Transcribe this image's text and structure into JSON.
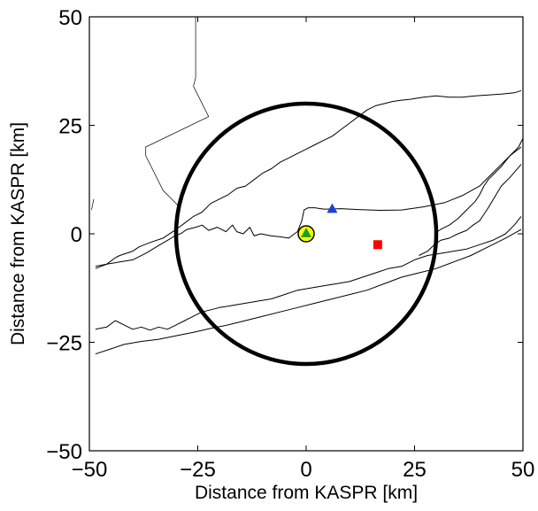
{
  "chart_data": {
    "type": "scatter",
    "title": "",
    "xlabel": "Distance from KASPR [km]",
    "ylabel": "Distance from KASPR [km]",
    "xlim": [
      -50,
      50
    ],
    "ylim": [
      -50,
      50
    ],
    "xticks": [
      {
        "value": -50,
        "label": "−50"
      },
      {
        "value": -25,
        "label": "−25"
      },
      {
        "value": 0,
        "label": "0"
      },
      {
        "value": 25,
        "label": "25"
      },
      {
        "value": 50,
        "label": "50"
      }
    ],
    "yticks": [
      {
        "value": -50,
        "label": "−50"
      },
      {
        "value": -25,
        "label": "−25"
      },
      {
        "value": 0,
        "label": "0"
      },
      {
        "value": 25,
        "label": "25"
      },
      {
        "value": 50,
        "label": "50"
      }
    ],
    "grid": false,
    "range_ring": {
      "center": [
        0,
        0
      ],
      "radius_km": 30,
      "color": "#000000"
    },
    "markers": [
      {
        "shape": "circle",
        "x": 0,
        "y": 0,
        "fill": "#ffff00",
        "edge": "#000000"
      },
      {
        "shape": "triangle",
        "x": 0,
        "y": 0.2,
        "fill": "#1aa01a"
      },
      {
        "shape": "triangle",
        "x": 6,
        "y": 5.8,
        "fill": "#1f3fd6"
      },
      {
        "shape": "square",
        "x": 16.5,
        "y": -2.5,
        "fill": "#ff0000"
      }
    ],
    "coastlines": [
      [
        [
          -48.6,
          -7.5
        ],
        [
          -46,
          -7
        ],
        [
          -43,
          -6.5
        ],
        [
          -40,
          -6
        ],
        [
          -37,
          -4.5
        ],
        [
          -34.5,
          -3
        ],
        [
          -32,
          -1.5
        ],
        [
          -30,
          -0.3
        ],
        [
          -29,
          0
        ],
        [
          -27.5,
          1
        ],
        [
          -25.5,
          1.5
        ],
        [
          -24,
          2
        ],
        [
          -22.5,
          0.8
        ],
        [
          -20.5,
          1.5
        ],
        [
          -18.5,
          0.5
        ],
        [
          -17,
          2
        ],
        [
          -16,
          0.5
        ],
        [
          -14.5,
          0
        ],
        [
          -13,
          1.5
        ],
        [
          -12,
          -0.5
        ],
        [
          -10.5,
          0
        ],
        [
          -8,
          -0.5
        ],
        [
          -6,
          -0.7
        ],
        [
          -4,
          -1
        ],
        [
          -3,
          -0.2
        ],
        [
          -2,
          0.5
        ]
      ],
      [
        [
          -2,
          0.5
        ],
        [
          -1,
          3
        ],
        [
          -0.5,
          5.5
        ],
        [
          0.5,
          6
        ],
        [
          2,
          6
        ],
        [
          4,
          5.7
        ],
        [
          5.5,
          5.7
        ],
        [
          8,
          5.8
        ],
        [
          12,
          5.6
        ],
        [
          17,
          5.4
        ],
        [
          22,
          5.5
        ],
        [
          27,
          6.2
        ],
        [
          32,
          7.2
        ],
        [
          36,
          8.8
        ],
        [
          40,
          11
        ],
        [
          43,
          14
        ],
        [
          46,
          17
        ],
        [
          49,
          20
        ],
        [
          50,
          22
        ]
      ],
      [
        [
          -48.6,
          -8
        ],
        [
          -46,
          -7
        ],
        [
          -44,
          -5.5
        ],
        [
          -43,
          -5
        ],
        [
          -40,
          -4
        ],
        [
          -38.5,
          -3
        ],
        [
          -36,
          -2
        ],
        [
          -33,
          -1
        ],
        [
          -30,
          1
        ],
        [
          -28,
          2.5
        ],
        [
          -26,
          4
        ],
        [
          -24,
          5
        ],
        [
          -22,
          7
        ],
        [
          -20,
          8
        ],
        [
          -18,
          9
        ],
        [
          -16,
          10.5
        ],
        [
          -14,
          11
        ],
        [
          -12,
          12.5
        ],
        [
          -10,
          14
        ],
        [
          -8,
          15
        ],
        [
          -6,
          16.5
        ],
        [
          -4,
          17.5
        ],
        [
          -2,
          18.5
        ],
        [
          0,
          19.5
        ],
        [
          2,
          20.5
        ],
        [
          4,
          21.5
        ],
        [
          6,
          22.5
        ],
        [
          8,
          24
        ],
        [
          10,
          25.5
        ],
        [
          12,
          27
        ],
        [
          14,
          28.5
        ],
        [
          16,
          29.5
        ],
        [
          18,
          30
        ],
        [
          20,
          30.5
        ],
        [
          22,
          30.8
        ],
        [
          24,
          31
        ],
        [
          27,
          31.5
        ],
        [
          30,
          31.8
        ],
        [
          33,
          31.5
        ],
        [
          36,
          31.5
        ],
        [
          39,
          31.8
        ],
        [
          42,
          32
        ],
        [
          45,
          32.2
        ],
        [
          48,
          32.5
        ],
        [
          49.6,
          33
        ]
      ],
      [
        [
          -48.6,
          -27.7
        ],
        [
          -45,
          -26.5
        ],
        [
          -42,
          -25.5
        ],
        [
          -38,
          -24.8
        ],
        [
          -34,
          -24.3
        ],
        [
          -30,
          -23.5
        ],
        [
          -26,
          -22.7
        ],
        [
          -22,
          -21.8
        ],
        [
          -18,
          -21
        ],
        [
          -14,
          -20
        ],
        [
          -10,
          -19
        ],
        [
          -6,
          -18
        ],
        [
          -2,
          -17
        ],
        [
          2,
          -16
        ],
        [
          6,
          -15
        ],
        [
          10,
          -14
        ],
        [
          14,
          -13
        ],
        [
          18,
          -11.5
        ],
        [
          22,
          -10
        ],
        [
          26,
          -9
        ],
        [
          30,
          -8
        ],
        [
          34,
          -6.5
        ],
        [
          38,
          -5
        ],
        [
          42,
          -3
        ],
        [
          46,
          -1
        ],
        [
          49.6,
          1
        ]
      ],
      [
        [
          -48.6,
          -22
        ],
        [
          -46,
          -21.5
        ],
        [
          -44,
          -20
        ],
        [
          -42,
          -21
        ],
        [
          -40,
          -22
        ],
        [
          -38,
          -21.5
        ],
        [
          -36,
          -22.2
        ],
        [
          -34,
          -21.5
        ],
        [
          -32,
          -22
        ],
        [
          -30,
          -21
        ],
        [
          -28,
          -20
        ],
        [
          -26,
          -19
        ],
        [
          -24,
          -18
        ],
        [
          -22,
          -17.5
        ],
        [
          -20,
          -17
        ],
        [
          -17,
          -16.5
        ],
        [
          -14,
          -16
        ],
        [
          -11,
          -15.5
        ],
        [
          -8,
          -15
        ],
        [
          -5,
          -14
        ],
        [
          -2,
          -13
        ],
        [
          1,
          -12.5
        ],
        [
          4,
          -12
        ],
        [
          7,
          -11.5
        ],
        [
          10,
          -11
        ],
        [
          13,
          -10
        ],
        [
          16,
          -9
        ],
        [
          19,
          -8
        ],
        [
          22,
          -7.5
        ],
        [
          25,
          -6
        ],
        [
          28,
          -5
        ],
        [
          31,
          -4.5
        ],
        [
          34,
          -4
        ],
        [
          37,
          -3.5
        ],
        [
          40,
          -2.5
        ],
        [
          43,
          -1.5
        ],
        [
          46,
          0
        ],
        [
          48,
          2
        ],
        [
          49.6,
          4
        ]
      ],
      [
        [
          49.6,
          20
        ],
        [
          47,
          18
        ],
        [
          45,
          15.5
        ],
        [
          43.5,
          14
        ],
        [
          42,
          12.5
        ],
        [
          41,
          11
        ],
        [
          40,
          9
        ],
        [
          39,
          7.5
        ],
        [
          37,
          5.5
        ],
        [
          35,
          3.5
        ],
        [
          33,
          2
        ],
        [
          31,
          1
        ],
        [
          30,
          0.3
        ]
      ],
      [
        [
          49.6,
          16
        ],
        [
          47,
          13
        ],
        [
          45,
          11
        ],
        [
          43.5,
          8.5
        ],
        [
          42,
          6
        ],
        [
          41,
          4.5
        ],
        [
          40,
          3
        ],
        [
          38.5,
          2
        ],
        [
          37,
          0.8
        ],
        [
          35,
          0
        ],
        [
          33,
          -1
        ],
        [
          31,
          -1.5
        ],
        [
          29.6,
          -2.5
        ],
        [
          28,
          -4
        ],
        [
          26,
          -5
        ]
      ]
    ],
    "border_lines": [
      [
        [
          -25.5,
          50
        ],
        [
          -25.5,
          36
        ],
        [
          -26,
          34
        ],
        [
          -22.5,
          27
        ],
        [
          -37,
          20
        ],
        [
          -37,
          18
        ],
        [
          -33,
          10
        ],
        [
          -29,
          6
        ]
      ],
      [
        [
          -49.5,
          5.5
        ],
        [
          -49,
          8
        ]
      ]
    ]
  }
}
